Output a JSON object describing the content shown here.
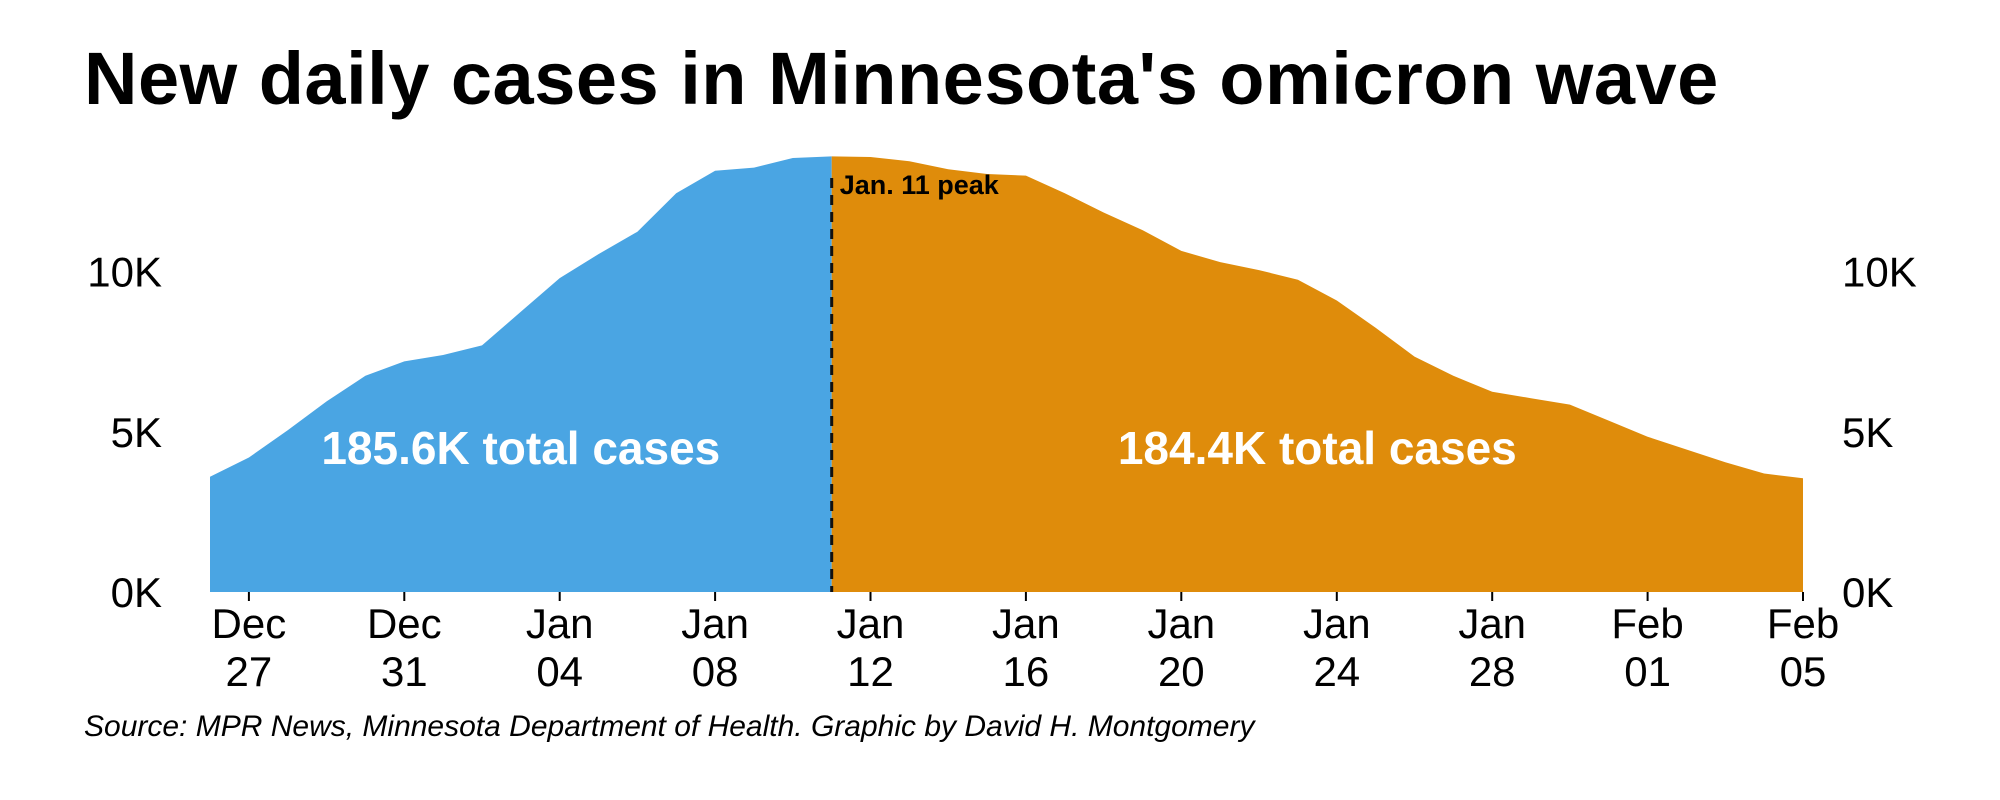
{
  "title": "New daily cases in Minnesota's omicron wave",
  "source": "Source: MPR News, Minnesota Department of Health. Graphic by David H. Montgomery",
  "colors": {
    "before_peak": "#4aa5e3",
    "after_peak": "#df8c0b",
    "text": "#000000"
  },
  "chart_data": {
    "type": "area",
    "title": "New daily cases in Minnesota's omicron wave",
    "xlabel": "",
    "ylabel": "",
    "x_start": "2021-12-26",
    "x_end": "2022-02-05",
    "ylim": [
      0,
      13800
    ],
    "grid": false,
    "y_ticks": [
      {
        "value": 0,
        "label": "0K"
      },
      {
        "value": 5000,
        "label": "5K"
      },
      {
        "value": 10000,
        "label": "10K"
      }
    ],
    "x_ticks": [
      {
        "date": "2021-12-27",
        "line1": "Dec",
        "line2": "27"
      },
      {
        "date": "2021-12-31",
        "line1": "Dec",
        "line2": "31"
      },
      {
        "date": "2022-01-04",
        "line1": "Jan",
        "line2": "04"
      },
      {
        "date": "2022-01-08",
        "line1": "Jan",
        "line2": "08"
      },
      {
        "date": "2022-01-12",
        "line1": "Jan",
        "line2": "12"
      },
      {
        "date": "2022-01-16",
        "line1": "Jan",
        "line2": "16"
      },
      {
        "date": "2022-01-20",
        "line1": "Jan",
        "line2": "20"
      },
      {
        "date": "2022-01-24",
        "line1": "Jan",
        "line2": "24"
      },
      {
        "date": "2022-01-28",
        "line1": "Jan",
        "line2": "28"
      },
      {
        "date": "2022-02-01",
        "line1": "Feb",
        "line2": "01"
      },
      {
        "date": "2022-02-05",
        "line1": "Feb",
        "line2": "05"
      }
    ],
    "series": [
      {
        "values": [
          {
            "date": "2021-12-26",
            "y": 3600
          },
          {
            "date": "2021-12-27",
            "y": 4200
          },
          {
            "date": "2021-12-28",
            "y": 5050
          },
          {
            "date": "2021-12-29",
            "y": 5950
          },
          {
            "date": "2021-12-30",
            "y": 6750
          },
          {
            "date": "2021-12-31",
            "y": 7200
          },
          {
            "date": "2022-01-01",
            "y": 7400
          },
          {
            "date": "2022-01-02",
            "y": 7700
          },
          {
            "date": "2022-01-03",
            "y": 8750
          },
          {
            "date": "2022-01-04",
            "y": 9800
          },
          {
            "date": "2022-01-05",
            "y": 10550
          },
          {
            "date": "2022-01-06",
            "y": 11250
          },
          {
            "date": "2022-01-07",
            "y": 12450
          },
          {
            "date": "2022-01-08",
            "y": 13150
          },
          {
            "date": "2022-01-09",
            "y": 13250
          },
          {
            "date": "2022-01-10",
            "y": 13550
          },
          {
            "date": "2022-01-11",
            "y": 13600
          }
        ],
        "total_label": "185.6K total cases",
        "color": "#4aa5e3"
      },
      {
        "values": [
          {
            "date": "2022-01-11",
            "y": 13600
          },
          {
            "date": "2022-01-12",
            "y": 13580
          },
          {
            "date": "2022-01-13",
            "y": 13450
          },
          {
            "date": "2022-01-14",
            "y": 13200
          },
          {
            "date": "2022-01-15",
            "y": 13050
          },
          {
            "date": "2022-01-16",
            "y": 13000
          },
          {
            "date": "2022-01-17",
            "y": 12450
          },
          {
            "date": "2022-01-18",
            "y": 11850
          },
          {
            "date": "2022-01-19",
            "y": 11300
          },
          {
            "date": "2022-01-20",
            "y": 10650
          },
          {
            "date": "2022-01-21",
            "y": 10300
          },
          {
            "date": "2022-01-22",
            "y": 10050
          },
          {
            "date": "2022-01-23",
            "y": 9750
          },
          {
            "date": "2022-01-24",
            "y": 9100
          },
          {
            "date": "2022-01-25",
            "y": 8250
          },
          {
            "date": "2022-01-26",
            "y": 7350
          },
          {
            "date": "2022-01-27",
            "y": 6750
          },
          {
            "date": "2022-01-28",
            "y": 6250
          },
          {
            "date": "2022-01-29",
            "y": 6050
          },
          {
            "date": "2022-01-30",
            "y": 5850
          },
          {
            "date": "2022-01-31",
            "y": 5350
          },
          {
            "date": "2022-02-01",
            "y": 4850
          },
          {
            "date": "2022-02-02",
            "y": 4450
          },
          {
            "date": "2022-02-03",
            "y": 4050
          },
          {
            "date": "2022-02-04",
            "y": 3700
          },
          {
            "date": "2022-02-05",
            "y": 3550
          }
        ],
        "total_label": "184.4K total cases",
        "color": "#df8c0b"
      }
    ],
    "annotations": [
      {
        "date": "2022-01-11",
        "label": "Jan. 11 peak",
        "style": "dashed-line"
      }
    ]
  }
}
